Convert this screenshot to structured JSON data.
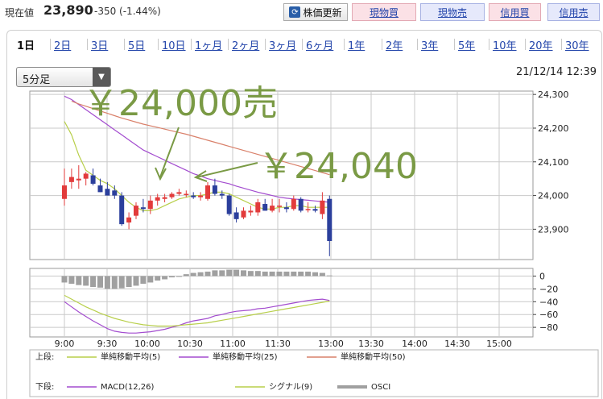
{
  "header": {
    "price_label": "現在値",
    "price_value": "23,890",
    "price_change": "-350 (-1.44%)",
    "buttons": {
      "refresh": "株価更新",
      "spot_buy": "現物買",
      "spot_sell": "現物売",
      "margin_buy": "信用買",
      "margin_sell": "信用売"
    }
  },
  "tabs": [
    "1日",
    "2日",
    "3日",
    "5日",
    "10日",
    "1ヶ月",
    "2ヶ月",
    "3ヶ月",
    "6ヶ月",
    "1年",
    "2年",
    "3年",
    "5年",
    "10年",
    "20年",
    "30年"
  ],
  "active_tab": "1日",
  "interval_select": "5分足",
  "datetime": "21/12/14 12:39",
  "colors": {
    "up": "#e23b3b",
    "down": "#2b3f9c",
    "sma5": "#b8cf4a",
    "sma25": "#a34ccf",
    "sma50": "#d9806a",
    "macd": "#a34ccf",
    "signal": "#b8cf4a",
    "osci": "#a0a0a0",
    "annotation": "#7a9a45"
  },
  "annotations": [
    "￥24,000売",
    "￥24,040"
  ],
  "chart_data": {
    "type": "candlestick",
    "x_tick_labels": [
      "9:00",
      "9:30",
      "10:00",
      "10:30",
      "11:00",
      "11:30",
      "13:00",
      "13:30",
      "14:00",
      "14:30",
      "15:00"
    ],
    "price_axis": {
      "ylim": [
        23810,
        24310
      ],
      "ticks": [
        24300,
        24200,
        24100,
        24000,
        23900
      ],
      "tick_labels": [
        "24,300",
        "24,200",
        "24,100",
        "24,000",
        "23,900"
      ]
    },
    "osc_axis": {
      "ylim": [
        -95,
        12
      ],
      "ticks": [
        0,
        -20,
        -40,
        -60,
        -80
      ],
      "tick_labels": [
        "0",
        "−20",
        "−40",
        "−60",
        "−80"
      ]
    },
    "candles": [
      {
        "o": 23990,
        "h": 24080,
        "l": 23970,
        "c": 24030
      },
      {
        "o": 24040,
        "h": 24080,
        "l": 24020,
        "c": 24055
      },
      {
        "o": 24045,
        "h": 24090,
        "l": 24020,
        "c": 24050
      },
      {
        "o": 24050,
        "h": 24070,
        "l": 24030,
        "c": 24065
      },
      {
        "o": 24060,
        "h": 24080,
        "l": 24030,
        "c": 24035
      },
      {
        "o": 24030,
        "h": 24050,
        "l": 24010,
        "c": 24010
      },
      {
        "o": 24020,
        "h": 24040,
        "l": 24000,
        "c": 24000
      },
      {
        "o": 24015,
        "h": 24030,
        "l": 23990,
        "c": 24000
      },
      {
        "o": 24000,
        "h": 24010,
        "l": 23910,
        "c": 23915
      },
      {
        "o": 23920,
        "h": 23950,
        "l": 23900,
        "c": 23935
      },
      {
        "o": 23940,
        "h": 23980,
        "l": 23930,
        "c": 23970
      },
      {
        "o": 23965,
        "h": 23990,
        "l": 23950,
        "c": 23960
      },
      {
        "o": 23960,
        "h": 24000,
        "l": 23945,
        "c": 23985
      },
      {
        "o": 23985,
        "h": 24005,
        "l": 23970,
        "c": 23995
      },
      {
        "o": 23990,
        "h": 24005,
        "l": 23980,
        "c": 23995
      },
      {
        "o": 23995,
        "h": 24010,
        "l": 23990,
        "c": 24005
      },
      {
        "o": 24005,
        "h": 24020,
        "l": 24000,
        "c": 24010
      },
      {
        "o": 24005,
        "h": 24015,
        "l": 23995,
        "c": 24005
      },
      {
        "o": 24000,
        "h": 24010,
        "l": 23990,
        "c": 23995
      },
      {
        "o": 23995,
        "h": 24010,
        "l": 23985,
        "c": 24000
      },
      {
        "o": 23990,
        "h": 24040,
        "l": 23985,
        "c": 24030
      },
      {
        "o": 24030,
        "h": 24050,
        "l": 24000,
        "c": 24005
      },
      {
        "o": 24005,
        "h": 24015,
        "l": 23990,
        "c": 24000
      },
      {
        "o": 24000,
        "h": 24005,
        "l": 23940,
        "c": 23945
      },
      {
        "o": 23950,
        "h": 23965,
        "l": 23920,
        "c": 23930
      },
      {
        "o": 23935,
        "h": 23965,
        "l": 23930,
        "c": 23955
      },
      {
        "o": 23950,
        "h": 23970,
        "l": 23940,
        "c": 23955
      },
      {
        "o": 23950,
        "h": 23990,
        "l": 23940,
        "c": 23980
      },
      {
        "o": 23975,
        "h": 23990,
        "l": 23955,
        "c": 23955
      },
      {
        "o": 23955,
        "h": 23990,
        "l": 23950,
        "c": 23970
      },
      {
        "o": 23970,
        "h": 23990,
        "l": 23950,
        "c": 23970
      },
      {
        "o": 23965,
        "h": 23980,
        "l": 23950,
        "c": 23960
      },
      {
        "o": 23960,
        "h": 24000,
        "l": 23955,
        "c": 23990
      },
      {
        "o": 23990,
        "h": 23995,
        "l": 23950,
        "c": 23955
      },
      {
        "o": 23960,
        "h": 23980,
        "l": 23950,
        "c": 23960
      },
      {
        "o": 23960,
        "h": 23970,
        "l": 23950,
        "c": 23955
      },
      {
        "o": 23945,
        "h": 24010,
        "l": 23930,
        "c": 23985
      },
      {
        "o": 23990,
        "h": 24000,
        "l": 23820,
        "c": 23865
      }
    ],
    "series": [
      {
        "name": "単純移動平均(5)",
        "values": [
          24220,
          24180,
          24120,
          24075,
          24060,
          24045,
          24035,
          24020,
          24000,
          23980,
          23965,
          23955,
          23955,
          23960,
          23970,
          23980,
          23990,
          23995,
          24000,
          24000,
          24005,
          24010,
          24010,
          24005,
          23995,
          23985,
          23975,
          23965,
          23960,
          23960,
          23965,
          23965,
          23970,
          23970,
          23965,
          23965,
          23965,
          23965
        ]
      },
      {
        "name": "単純移動平均(25)",
        "values": [
          24295,
          24285,
          24270,
          24255,
          24240,
          24225,
          24210,
          24195,
          24180,
          24165,
          24150,
          24135,
          24125,
          24115,
          24105,
          24095,
          24085,
          24075,
          24065,
          24058,
          24050,
          24045,
          24040,
          24035,
          24028,
          24022,
          24016,
          24010,
          24005,
          24000,
          23995,
          23992,
          23990,
          23988,
          23986,
          23984,
          23982,
          23980
        ]
      },
      {
        "name": "単純移動平均(50)",
        "values": [
          null,
          24280,
          24272,
          24265,
          24258,
          24251,
          24244,
          24237,
          24230,
          24224,
          24218,
          24212,
          24207,
          24202,
          24197,
          24192,
          24187,
          24182,
          24176,
          24170,
          24164,
          24158,
          24152,
          24146,
          24140,
          24134,
          24128,
          24122,
          24116,
          24110,
          24104,
          24098,
          24092,
          24086,
          24080,
          24074,
          24068,
          24062
        ]
      }
    ],
    "oscillator": {
      "macd": {
        "name": "MACD(12,26)",
        "values": [
          -40,
          -48,
          -56,
          -63,
          -70,
          -76,
          -82,
          -86,
          -88,
          -89,
          -89,
          -88,
          -87,
          -85,
          -83,
          -80,
          -77,
          -73,
          -70,
          -68,
          -66,
          -62,
          -60,
          -57,
          -55,
          -54,
          -53,
          -51,
          -50,
          -48,
          -46,
          -44,
          -42,
          -40,
          -38,
          -37,
          -36,
          -38
        ]
      },
      "signal": {
        "name": "シグナル(9)",
        "values": [
          -30,
          -36,
          -42,
          -48,
          -53,
          -58,
          -62,
          -66,
          -69,
          -72,
          -74,
          -76,
          -77,
          -78,
          -78,
          -78,
          -77,
          -76,
          -75,
          -74,
          -73,
          -71,
          -69,
          -67,
          -65,
          -63,
          -61,
          -59,
          -57,
          -55,
          -53,
          -51,
          -49,
          -47,
          -45,
          -43,
          -41,
          -39
        ]
      },
      "osci": {
        "name": "OSCI",
        "values": [
          -10,
          -12,
          -14,
          -15,
          -17,
          -18,
          -20,
          -20,
          -19,
          -17,
          -15,
          -12,
          -10,
          -7,
          -5,
          -2,
          0,
          3,
          5,
          6,
          7,
          9,
          9,
          10,
          10,
          9,
          8,
          8,
          7,
          7,
          7,
          7,
          7,
          7,
          7,
          6,
          5,
          1
        ]
      }
    },
    "legend": {
      "upper_label": "上段:",
      "lower_label": "下段:",
      "upper": [
        "単純移動平均(5)",
        "単純移動平均(25)",
        "単純移動平均(50)"
      ],
      "lower": [
        "MACD(12,26)",
        "シグナル(9)",
        "OSCI"
      ]
    }
  }
}
